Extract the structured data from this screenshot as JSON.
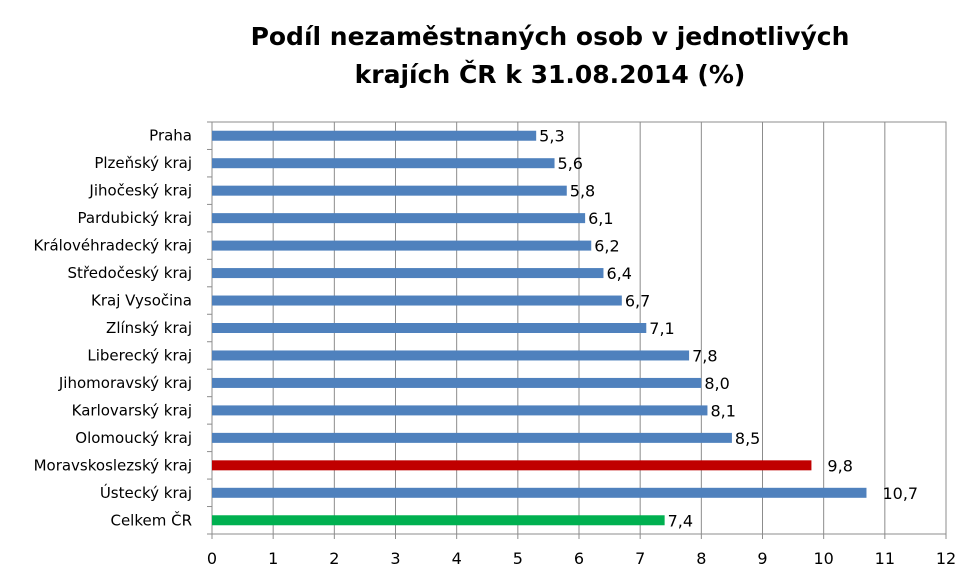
{
  "chart_data": {
    "type": "bar",
    "orientation": "horizontal",
    "title_lines": [
      "Podíl nezaměstnaných osob v jednotlivých",
      "krajích ČR k 31.08.2014 (%)"
    ],
    "categories": [
      "Praha",
      "Plzeňský kraj",
      "Jihočeský kraj",
      "Pardubický kraj",
      "Královéhradecký kraj",
      "Středočeský kraj",
      "Kraj Vysočina",
      "Zlínský kraj",
      "Liberecký kraj",
      "Jihomoravský kraj",
      "Karlovarský kraj",
      "Olomoucký kraj",
      "Moravskoslezský kraj",
      "Ústecký kraj",
      "Celkem ČR"
    ],
    "values": [
      5.3,
      5.6,
      5.8,
      6.1,
      6.2,
      6.4,
      6.7,
      7.1,
      7.8,
      8.0,
      8.1,
      8.5,
      9.8,
      10.7,
      7.4
    ],
    "data_labels": [
      "5,3",
      "5,6",
      "5,8",
      "6,1",
      "6,2",
      "6,4",
      "6,7",
      "7,1",
      "7,8",
      "8,0",
      "8,1",
      "8,5",
      "9,8",
      "10,7",
      "7,4"
    ],
    "bar_colors": [
      "#4f81bd",
      "#4f81bd",
      "#4f81bd",
      "#4f81bd",
      "#4f81bd",
      "#4f81bd",
      "#4f81bd",
      "#4f81bd",
      "#4f81bd",
      "#4f81bd",
      "#4f81bd",
      "#4f81bd",
      "#c00000",
      "#4f81bd",
      "#00b050"
    ],
    "xlim": [
      0,
      12
    ],
    "xticks": [
      "0",
      "1",
      "2",
      "3",
      "4",
      "5",
      "6",
      "7",
      "8",
      "9",
      "10",
      "11",
      "12"
    ],
    "grid": "vertical",
    "legend": "none"
  }
}
